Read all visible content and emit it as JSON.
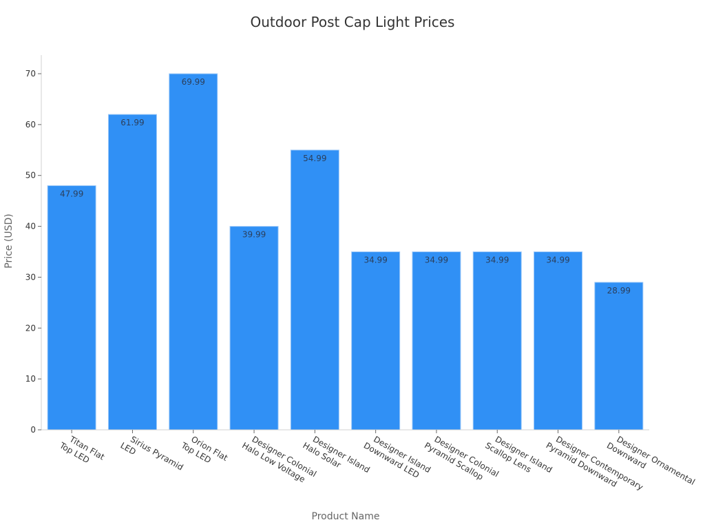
{
  "chart_data": {
    "type": "bar",
    "title": "Outdoor Post Cap Light Prices",
    "xlabel": "Product Name",
    "ylabel": "Price (USD)",
    "ylim": [
      0,
      70
    ],
    "yticks": [
      0,
      10,
      20,
      30,
      40,
      50,
      60,
      70
    ],
    "grid": false,
    "legend": null,
    "bar_color": "#3090f5",
    "categories": [
      "Titan Flat Top LED",
      "Sirius Pyramid LED",
      "Orion Flat Top LED",
      "Designer Colonial Halo Low Voltage",
      "Designer Island Halo Solar",
      "Designer Island Downward LED",
      "Designer Colonial Pyramid Scallop",
      "Designer Island Scallop Lens",
      "Designer Contemporary Pyramid Downward",
      "Designer Ornamental Downward"
    ],
    "category_lines": [
      [
        "Titan Flat",
        "Top LED"
      ],
      [
        "Sirius Pyramid",
        "LED"
      ],
      [
        "Orion Flat",
        "Top LED"
      ],
      [
        "Designer Colonial",
        "Halo Low Voltage"
      ],
      [
        "Designer Island",
        "Halo Solar"
      ],
      [
        "Designer Island",
        "Downward LED"
      ],
      [
        "Designer Colonial",
        "Pyramid Scallop"
      ],
      [
        "Designer Island",
        "Scallop Lens"
      ],
      [
        "Designer Contemporary",
        "Pyramid Downward"
      ],
      [
        "Designer Ornamental",
        "Downward"
      ]
    ],
    "values": [
      47.99,
      61.99,
      69.99,
      39.99,
      54.99,
      34.99,
      34.99,
      34.99,
      34.99,
      28.99
    ],
    "data_labels": [
      "47.99",
      "61.99",
      "69.99",
      "39.99",
      "54.99",
      "34.99",
      "34.99",
      "34.99",
      "34.99",
      "28.99"
    ]
  }
}
